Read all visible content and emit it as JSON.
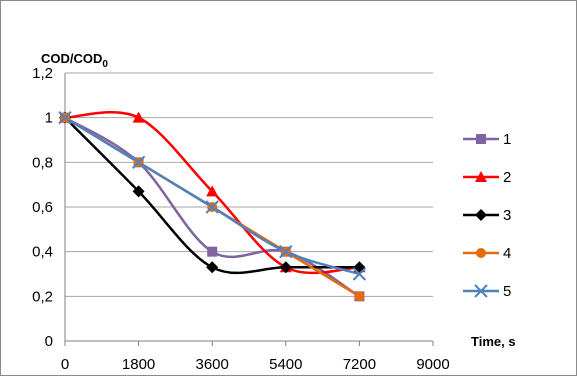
{
  "chart_data": {
    "type": "line",
    "smooth": true,
    "x": [
      0,
      1800,
      3600,
      5400,
      7200
    ],
    "series": [
      {
        "name": "1",
        "values": [
          1,
          0.8,
          0.4,
          0.4,
          0.2
        ],
        "color": "#8064a2",
        "marker": "square"
      },
      {
        "name": "2",
        "values": [
          1,
          1,
          0.67,
          0.33,
          0.33
        ],
        "color": "#ff0000",
        "marker": "triangle"
      },
      {
        "name": "3",
        "values": [
          1,
          0.67,
          0.33,
          0.33,
          0.33
        ],
        "color": "#000000",
        "marker": "diamond"
      },
      {
        "name": "4",
        "values": [
          1,
          0.8,
          0.6,
          0.4,
          0.2
        ],
        "color": "#e46c0a",
        "marker": "circle"
      },
      {
        "name": "5",
        "values": [
          1,
          0.8,
          0.6,
          0.4,
          0.3
        ],
        "color": "#4f81bd",
        "marker": "x"
      }
    ],
    "xlim": [
      0,
      9000
    ],
    "ylim": [
      0,
      1.2
    ],
    "x_ticks": [
      "0",
      "1800",
      "3600",
      "5400",
      "7200",
      "9000"
    ],
    "y_ticks": [
      "0",
      "0,2",
      "0,4",
      "0,6",
      "0,8",
      "1",
      "1,2"
    ],
    "ylabel": "COD/COD",
    "ylabel_subscript": "0",
    "xlabel": "Time, s",
    "grid": "horizontal",
    "legend_position": "right"
  }
}
